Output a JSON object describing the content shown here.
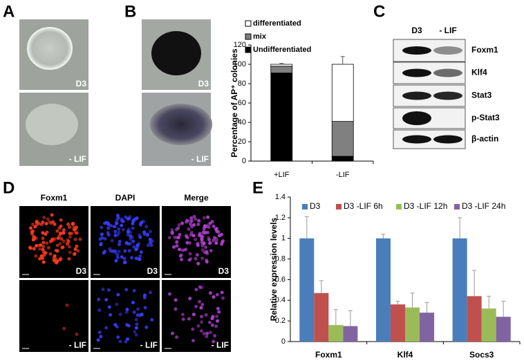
{
  "panel_labels": [
    "A",
    "B",
    "C",
    "D",
    "E"
  ],
  "panel_a": {
    "image_labels": [
      "D3",
      "- LIF"
    ]
  },
  "panel_b": {
    "image_labels": [
      "D3",
      "- LIF"
    ]
  },
  "panel_c": {
    "lanes": [
      "D3",
      "- LIF"
    ],
    "rows": [
      "Foxm1",
      "Klf4",
      "Stat3",
      "p-Stat3",
      "β-actin"
    ]
  },
  "panel_d": {
    "columns": [
      "Foxm1",
      "DAPI",
      "Merge"
    ],
    "image_labels": [
      "D3",
      "- LIF"
    ]
  },
  "chart_data": [
    {
      "type": "bar",
      "stacked": true,
      "y_label": "Percentage of AP⁺ colonies",
      "categories": [
        "+LIF",
        "-LIF"
      ],
      "series": [
        {
          "name": "Undifferentiated",
          "color": "#000000",
          "values": [
            91,
            5
          ],
          "errors": [
            2,
            3
          ]
        },
        {
          "name": "mix",
          "color": "#808080",
          "values": [
            7,
            36
          ],
          "errors": [
            1,
            4
          ]
        },
        {
          "name": "differentiated",
          "color": "#ffffff",
          "values": [
            2,
            59
          ],
          "errors": [
            1,
            8
          ]
        }
      ],
      "ylim": [
        0,
        120
      ],
      "yticks": [
        0,
        20,
        40,
        60,
        80,
        100,
        120
      ],
      "legend": "top-left"
    },
    {
      "type": "bar",
      "stacked": false,
      "y_label": "Relative expression levels",
      "categories": [
        "Foxm1",
        "Klf4",
        "Socs3"
      ],
      "series": [
        {
          "name": "D3",
          "color": "#4a7ebb",
          "values": [
            1,
            1,
            1
          ],
          "errors": [
            0.21,
            0.04,
            0.2
          ]
        },
        {
          "name": "D3 -LIF 6h",
          "color": "#c0504d",
          "values": [
            0.47,
            0.36,
            0.44
          ],
          "errors": [
            0.12,
            0.03,
            0.25
          ]
        },
        {
          "name": "D3 -LIF 12h",
          "color": "#9bbb59",
          "values": [
            0.16,
            0.33,
            0.32
          ],
          "errors": [
            0.15,
            0.14,
            0.12
          ]
        },
        {
          "name": "D3 -LIF 24h",
          "color": "#8064a2",
          "values": [
            0.15,
            0.28,
            0.24
          ],
          "errors": [
            0.15,
            0.1,
            0.15
          ]
        }
      ],
      "ylim": [
        0,
        1.4
      ],
      "yticks": [
        0,
        0.2,
        0.4,
        0.6,
        0.8,
        1,
        1.2,
        1.4
      ],
      "legend": "top"
    }
  ]
}
